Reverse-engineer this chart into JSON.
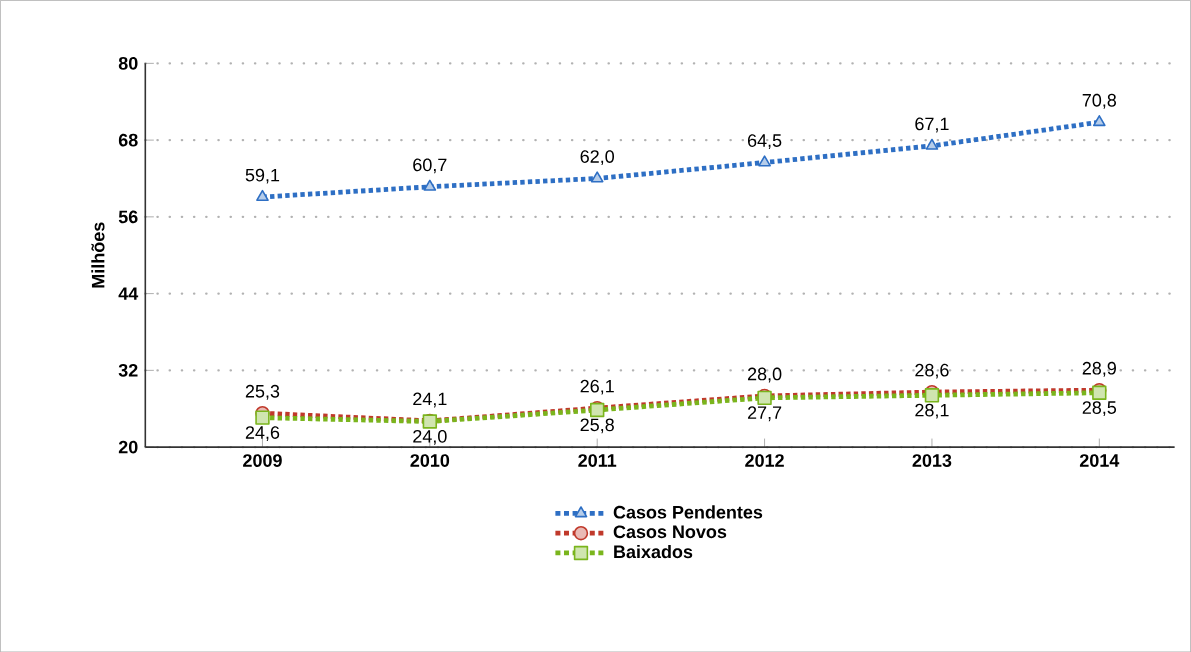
{
  "chart_data": {
    "type": "line",
    "ylabel": "Milhões",
    "categories": [
      "2009",
      "2010",
      "2011",
      "2012",
      "2013",
      "2014"
    ],
    "series": [
      {
        "name": "Casos Pendentes",
        "color": "#2e6fc4",
        "marker": "triangle",
        "values": [
          59.1,
          60.7,
          62.0,
          64.5,
          67.1,
          70.8
        ],
        "value_labels": [
          "59,1",
          "60,7",
          "62,0",
          "64,5",
          "67,1",
          "70,8"
        ]
      },
      {
        "name": "Casos Novos",
        "color": "#c0392b",
        "marker": "circle",
        "values": [
          25.3,
          24.1,
          26.1,
          28.0,
          28.6,
          28.9
        ],
        "value_labels": [
          "25,3",
          "24,1",
          "26,1",
          "28,0",
          "28,6",
          "28,9"
        ]
      },
      {
        "name": "Baixados",
        "color": "#7ab51d",
        "marker": "square",
        "values": [
          24.6,
          24.0,
          25.8,
          27.7,
          28.1,
          28.5
        ],
        "value_labels": [
          "24,6",
          "24,0",
          "25,8",
          "27,7",
          "28,1",
          "28,5"
        ]
      }
    ],
    "ylim": [
      20,
      80
    ],
    "yticks": [
      20,
      32,
      44,
      56,
      68,
      80
    ],
    "grid": "y",
    "legend": "bottom",
    "line_style": "dotted"
  }
}
